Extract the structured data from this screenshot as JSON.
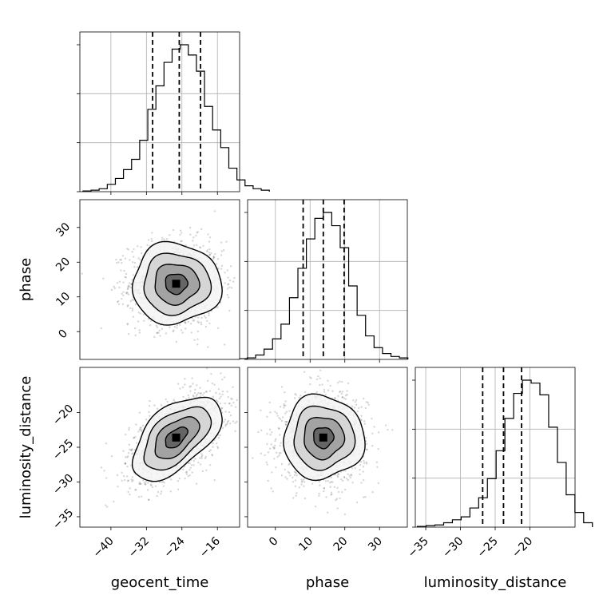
{
  "chart_data": {
    "type": "corner",
    "parameters": [
      "geocent_time",
      "phase",
      "luminosity_distance"
    ],
    "xlabels": {
      "geocent_time": "geocent_time",
      "phase": "phase",
      "luminosity_distance": "luminosity_distance"
    },
    "ylabels": {
      "phase": "phase",
      "luminosity_distance": "luminosity_distance"
    },
    "ticks": {
      "geocent_time": {
        "values": [
          -40,
          -32,
          -24,
          -16
        ],
        "labels": [
          "−40",
          "−32",
          "−24",
          "−16"
        ]
      },
      "phase": {
        "values": [
          0,
          10,
          20,
          30
        ],
        "labels": [
          "0",
          "10",
          "20",
          "30"
        ]
      },
      "luminosity_distance": {
        "values": [
          -35,
          -30,
          -25,
          -20
        ],
        "labels": [
          "−35",
          "−30",
          "−25",
          "−20"
        ]
      }
    },
    "ranges": {
      "geocent_time": [
        -47,
        -11
      ],
      "phase": [
        -8,
        38
      ],
      "luminosity_distance": [
        -36.5,
        -13.5
      ]
    },
    "quantiles": {
      "geocent_time": [
        -30.6,
        -24.6,
        -19.8
      ],
      "phase": [
        8.0,
        13.8,
        19.8
      ],
      "luminosity_distance": [
        -26.8,
        -23.8,
        -21.2
      ]
    },
    "distributions": {
      "geocent_time": {
        "mean": -25.3,
        "sd": 5.0
      },
      "phase": {
        "mean": 13.8,
        "sd": 5.8
      },
      "luminosity_distance": {
        "mean": -23.6,
        "sd": 3.0
      }
    },
    "correlations": {
      "geocent_time|phase": 0.0,
      "geocent_time|luminosity_distance": 0.55,
      "phase|luminosity_distance": 0.0
    },
    "histograms": {
      "geocent_time": [
        0.005,
        0.01,
        0.02,
        0.05,
        0.09,
        0.15,
        0.22,
        0.35,
        0.56,
        0.72,
        0.88,
        0.97,
        1.0,
        0.93,
        0.82,
        0.58,
        0.42,
        0.3,
        0.16,
        0.08,
        0.04,
        0.02,
        0.01
      ],
      "phase": [
        0.005,
        0.01,
        0.03,
        0.07,
        0.14,
        0.24,
        0.42,
        0.62,
        0.82,
        0.96,
        1.0,
        0.91,
        0.76,
        0.5,
        0.3,
        0.16,
        0.08,
        0.04,
        0.02,
        0.01
      ],
      "luminosity_distance": [
        0.005,
        0.01,
        0.015,
        0.03,
        0.05,
        0.07,
        0.13,
        0.2,
        0.33,
        0.52,
        0.74,
        0.91,
        1.0,
        0.98,
        0.9,
        0.68,
        0.44,
        0.22,
        0.1,
        0.03
      ]
    },
    "contour_levels_sigma": [
      0.5,
      1.0,
      1.5,
      2.0
    ],
    "grid": true,
    "legend": "none"
  }
}
